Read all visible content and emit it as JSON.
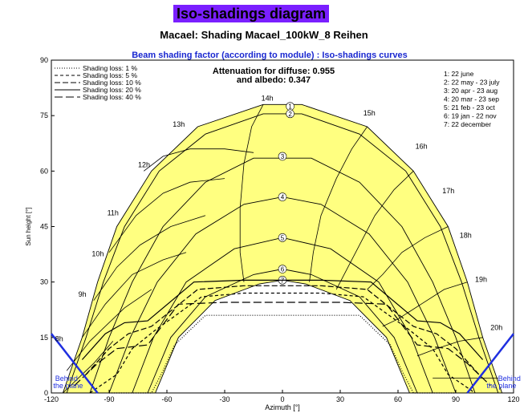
{
  "header": {
    "title": "Iso-shadings diagram",
    "subtitle": "Macael: Shading Macael_100kW_8 Reihen"
  },
  "chart_data": {
    "type": "line",
    "title": "Beam shading factor (according to module) : Iso-shadings curves",
    "xlabel": "Azimuth [°]",
    "ylabel": "Sun height [°]",
    "xlim": [
      -120,
      120
    ],
    "ylim": [
      0,
      90
    ],
    "xticks": [
      "-120",
      "-90",
      "-60",
      "-30",
      "0",
      "30",
      "60",
      "90",
      "120"
    ],
    "yticks": [
      "0",
      "15",
      "30",
      "45",
      "60",
      "75",
      "90"
    ],
    "annotation_line1": "Attenuation for diffuse: 0.955",
    "annotation_line2": "and albedo: 0.347",
    "behind_plane_label_line1": "Behind",
    "behind_plane_label_line2": "the plane",
    "legend_shading": [
      {
        "label": "Shading loss: 1 %",
        "dash": "1,2"
      },
      {
        "label": "Shading loss: 5 %",
        "dash": "4,3"
      },
      {
        "label": "Shading loss: 10 %",
        "dash": "7,3"
      },
      {
        "label": "Shading loss: 20 %",
        "dash": ""
      },
      {
        "label": "Shading loss: 40 %",
        "dash": "10,4"
      }
    ],
    "legend_dates": [
      "1: 22 june",
      "2: 22 may - 23 july",
      "3: 20 apr - 23 aug",
      "4: 20 mar - 23 sep",
      "5: 21 feb - 23 oct",
      "6: 19 jan - 22 nov",
      "7: 22 december"
    ],
    "sun_paths": [
      {
        "id": "1",
        "label_x": 4,
        "label_y": 77.5,
        "points": [
          [
            -114,
            0
          ],
          [
            -104,
            15
          ],
          [
            -96,
            30
          ],
          [
            -86,
            45
          ],
          [
            -68,
            60
          ],
          [
            -44,
            72
          ],
          [
            -10,
            78
          ],
          [
            10,
            78
          ],
          [
            44,
            72
          ],
          [
            68,
            60
          ],
          [
            86,
            45
          ],
          [
            96,
            30
          ],
          [
            104,
            15
          ],
          [
            114,
            0
          ]
        ]
      },
      {
        "id": "2",
        "label_x": 4,
        "label_y": 75.5,
        "points": [
          [
            -112,
            0
          ],
          [
            -102,
            15
          ],
          [
            -93,
            30
          ],
          [
            -82,
            45
          ],
          [
            -64,
            60
          ],
          [
            -40,
            70
          ],
          [
            -10,
            75.5
          ],
          [
            10,
            75.5
          ],
          [
            40,
            70
          ],
          [
            64,
            60
          ],
          [
            82,
            45
          ],
          [
            93,
            30
          ],
          [
            102,
            15
          ],
          [
            112,
            0
          ]
        ]
      },
      {
        "id": "3",
        "label_x": 0,
        "label_y": 64,
        "points": [
          [
            -100,
            0
          ],
          [
            -90,
            15
          ],
          [
            -78,
            30
          ],
          [
            -62,
            45
          ],
          [
            -40,
            57
          ],
          [
            -15,
            63.5
          ],
          [
            15,
            63.5
          ],
          [
            40,
            57
          ],
          [
            62,
            45
          ],
          [
            78,
            30
          ],
          [
            90,
            15
          ],
          [
            100,
            0
          ]
        ]
      },
      {
        "id": "4",
        "label_x": 0,
        "label_y": 53,
        "points": [
          [
            -90,
            0
          ],
          [
            -79,
            15
          ],
          [
            -65,
            30
          ],
          [
            -45,
            43
          ],
          [
            -20,
            51
          ],
          [
            0,
            53
          ],
          [
            20,
            51
          ],
          [
            45,
            43
          ],
          [
            65,
            30
          ],
          [
            79,
            15
          ],
          [
            90,
            0
          ]
        ]
      },
      {
        "id": "5",
        "label_x": 0,
        "label_y": 42,
        "points": [
          [
            -78,
            0
          ],
          [
            -67,
            15
          ],
          [
            -50,
            30
          ],
          [
            -25,
            39
          ],
          [
            0,
            42
          ],
          [
            25,
            39
          ],
          [
            50,
            30
          ],
          [
            67,
            15
          ],
          [
            78,
            0
          ]
        ]
      },
      {
        "id": "6",
        "label_x": 0,
        "label_y": 33.5,
        "points": [
          [
            -70,
            0
          ],
          [
            -58,
            15
          ],
          [
            -40,
            26
          ],
          [
            -15,
            32
          ],
          [
            0,
            33.5
          ],
          [
            15,
            32
          ],
          [
            40,
            26
          ],
          [
            58,
            15
          ],
          [
            70,
            0
          ]
        ]
      },
      {
        "id": "7",
        "label_x": 0,
        "label_y": 30.5,
        "points": [
          [
            -66,
            0
          ],
          [
            -54,
            15
          ],
          [
            -35,
            25
          ],
          [
            -12,
            29.5
          ],
          [
            0,
            30.5
          ],
          [
            12,
            29.5
          ],
          [
            35,
            25
          ],
          [
            54,
            15
          ],
          [
            66,
            0
          ]
        ]
      }
    ],
    "hour_labels": [
      {
        "text": "8h",
        "x": -118,
        "y": 14
      },
      {
        "text": "9h",
        "x": -106,
        "y": 26
      },
      {
        "text": "10h",
        "x": -99,
        "y": 37
      },
      {
        "text": "11h",
        "x": -91,
        "y": 48
      },
      {
        "text": "12h",
        "x": -75,
        "y": 61
      },
      {
        "text": "13h",
        "x": -57,
        "y": 72
      },
      {
        "text": "14h",
        "x": -11,
        "y": 79
      },
      {
        "text": "15h",
        "x": 42,
        "y": 75
      },
      {
        "text": "16h",
        "x": 69,
        "y": 66
      },
      {
        "text": "17h",
        "x": 83,
        "y": 54
      },
      {
        "text": "18h",
        "x": 92,
        "y": 42
      },
      {
        "text": "19h",
        "x": 100,
        "y": 30
      },
      {
        "text": "20h",
        "x": 108,
        "y": 17
      }
    ],
    "hour_lines": [
      [
        [
          -114,
          0
        ],
        [
          -98,
          8
        ],
        [
          -88,
          14
        ]
      ],
      [
        [
          -112,
          6
        ],
        [
          -100,
          14
        ],
        [
          -82,
          23
        ],
        [
          -68,
          28
        ]
      ],
      [
        [
          -104,
          15
        ],
        [
          -92,
          24
        ],
        [
          -78,
          32
        ],
        [
          -62,
          36
        ],
        [
          -50,
          38
        ]
      ],
      [
        [
          -98,
          25
        ],
        [
          -86,
          34
        ],
        [
          -74,
          40
        ],
        [
          -58,
          45
        ],
        [
          -40,
          48
        ]
      ],
      [
        [
          -90,
          38
        ],
        [
          -76,
          48
        ],
        [
          -62,
          54
        ],
        [
          -48,
          57
        ],
        [
          -30,
          58
        ]
      ],
      [
        [
          -72,
          60
        ],
        [
          -62,
          64
        ],
        [
          -48,
          66
        ],
        [
          -30,
          66
        ],
        [
          -15,
          65
        ]
      ],
      [
        [
          -10,
          78
        ],
        [
          -16,
          72
        ],
        [
          -20,
          62
        ],
        [
          -22,
          50
        ],
        [
          -22,
          38
        ],
        [
          -20,
          30
        ]
      ],
      [
        [
          44,
          72
        ],
        [
          36,
          66
        ],
        [
          28,
          58
        ],
        [
          20,
          48
        ],
        [
          16,
          38
        ],
        [
          14,
          30
        ]
      ],
      [
        [
          68,
          60
        ],
        [
          58,
          55
        ],
        [
          48,
          48
        ],
        [
          40,
          40
        ],
        [
          32,
          32
        ],
        [
          28,
          28
        ]
      ],
      [
        [
          86,
          45
        ],
        [
          74,
          42
        ],
        [
          62,
          38
        ],
        [
          52,
          32
        ],
        [
          44,
          28
        ]
      ],
      [
        [
          96,
          30
        ],
        [
          84,
          28
        ],
        [
          72,
          24
        ],
        [
          60,
          20
        ],
        [
          52,
          18
        ]
      ],
      [
        [
          104,
          15
        ],
        [
          92,
          14
        ],
        [
          80,
          12
        ],
        [
          70,
          10
        ]
      ],
      [
        [
          112,
          4
        ],
        [
          100,
          4
        ],
        [
          88,
          4
        ],
        [
          78,
          4
        ]
      ]
    ],
    "iso_shading_curves": [
      {
        "loss": "1 %",
        "dash": "1,2",
        "points": [
          [
            -90,
            0
          ],
          [
            -68,
            0
          ],
          [
            -62,
            6
          ],
          [
            -56,
            13
          ],
          [
            -40,
            21
          ],
          [
            -20,
            21
          ],
          [
            -14,
            21
          ],
          [
            14,
            21
          ],
          [
            20,
            21
          ],
          [
            40,
            21
          ],
          [
            56,
            13
          ],
          [
            62,
            6
          ],
          [
            68,
            0
          ],
          [
            90,
            0
          ]
        ]
      },
      {
        "loss": "5 %",
        "dash": "4,3",
        "points": [
          [
            -100,
            0
          ],
          [
            -86,
            5
          ],
          [
            -78,
            12
          ],
          [
            -66,
            17
          ],
          [
            -42,
            26
          ],
          [
            -20,
            27
          ],
          [
            20,
            27
          ],
          [
            42,
            26
          ],
          [
            66,
            17
          ],
          [
            78,
            12
          ],
          [
            86,
            5
          ],
          [
            100,
            0
          ]
        ]
      },
      {
        "loss": "10 %",
        "dash": "7,3",
        "points": [
          [
            -102,
            5
          ],
          [
            -90,
            12
          ],
          [
            -80,
            16
          ],
          [
            -68,
            18
          ],
          [
            -44,
            28
          ],
          [
            -20,
            29
          ],
          [
            20,
            29
          ],
          [
            44,
            28
          ],
          [
            68,
            18
          ],
          [
            80,
            16
          ],
          [
            90,
            12
          ],
          [
            102,
            5
          ]
        ]
      },
      {
        "loss": "20 %",
        "dash": "",
        "points": [
          [
            -104,
            9
          ],
          [
            -92,
            16
          ],
          [
            -82,
            19
          ],
          [
            -70,
            19.5
          ],
          [
            -46,
            30
          ],
          [
            -20,
            30.5
          ],
          [
            20,
            30.5
          ],
          [
            46,
            30
          ],
          [
            70,
            19.5
          ],
          [
            82,
            19
          ],
          [
            92,
            16
          ],
          [
            104,
            9
          ]
        ]
      },
      {
        "loss": "40 %",
        "dash": "10,4",
        "points": [
          [
            -108,
            2
          ],
          [
            -96,
            8
          ],
          [
            -86,
            12
          ],
          [
            -70,
            13
          ],
          [
            -54,
            24
          ],
          [
            -30,
            24.5
          ],
          [
            30,
            24.5
          ],
          [
            54,
            24
          ],
          [
            70,
            13
          ],
          [
            86,
            12
          ],
          [
            96,
            8
          ],
          [
            108,
            2
          ]
        ]
      }
    ],
    "behind_plane_left": [
      [
        -120,
        16
      ],
      [
        -108,
        8
      ],
      [
        -96,
        0
      ]
    ],
    "behind_plane_right": [
      [
        96,
        0
      ],
      [
        108,
        8
      ],
      [
        120,
        16
      ]
    ],
    "colors": {
      "fill": "#ffff80",
      "behind_plane": "#1f2fe0",
      "title_badge": "#7a1fff",
      "chart_title": "#1a28d0"
    }
  }
}
